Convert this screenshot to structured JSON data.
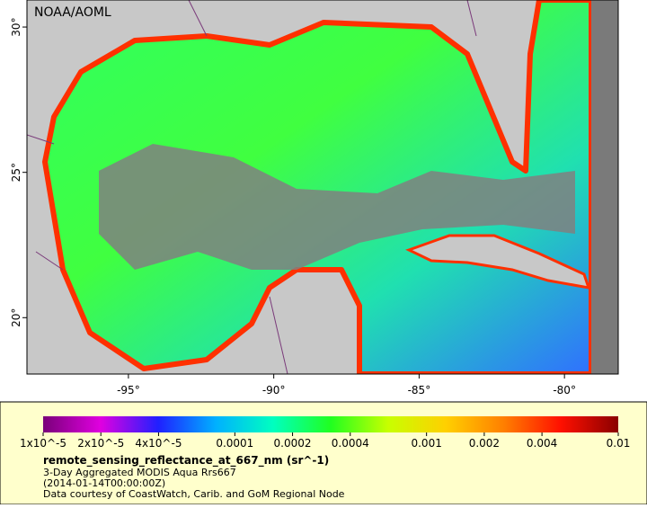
{
  "map": {
    "credit": "NOAA/AOML",
    "lon_range": [
      -98.49,
      -78.15
    ],
    "lat_range": [
      18.06,
      30.93
    ],
    "lon_ticks": [
      {
        "value": -95,
        "label": "-95°"
      },
      {
        "value": -90,
        "label": "-90°"
      },
      {
        "value": -85,
        "label": "-85°"
      },
      {
        "value": -80,
        "label": "-80°"
      }
    ],
    "lat_ticks": [
      {
        "value": 20,
        "label": "20°"
      },
      {
        "value": 25,
        "label": "25°"
      },
      {
        "value": 30,
        "label": "30°"
      }
    ]
  },
  "colorbar": {
    "log": true,
    "range": [
      1e-05,
      0.01
    ],
    "colors": [
      "#7a007a",
      "#e000e0",
      "#2020ff",
      "#00b0ff",
      "#00ffc0",
      "#20ff20",
      "#c8ff00",
      "#ffd000",
      "#ff8000",
      "#ff1000",
      "#8a0000"
    ],
    "ticks": [
      {
        "value": 1e-05,
        "label": "1x10^-5"
      },
      {
        "value": 2e-05,
        "label": "2x10^-5"
      },
      {
        "value": 4e-05,
        "label": "4x10^-5"
      },
      0.0001,
      0.0002,
      0.0004,
      0.001,
      0.002,
      0.004,
      0.01
    ],
    "label": "remote_sensing_reflectance_at_667_nm (sr^-1)",
    "description": "3-Day Aggregated MODIS Aqua Rrs667",
    "time": "(2014-01-14T00:00:00Z)",
    "source": "Data courtesy of CoastWatch, Carib. and GoM Regional Node"
  }
}
